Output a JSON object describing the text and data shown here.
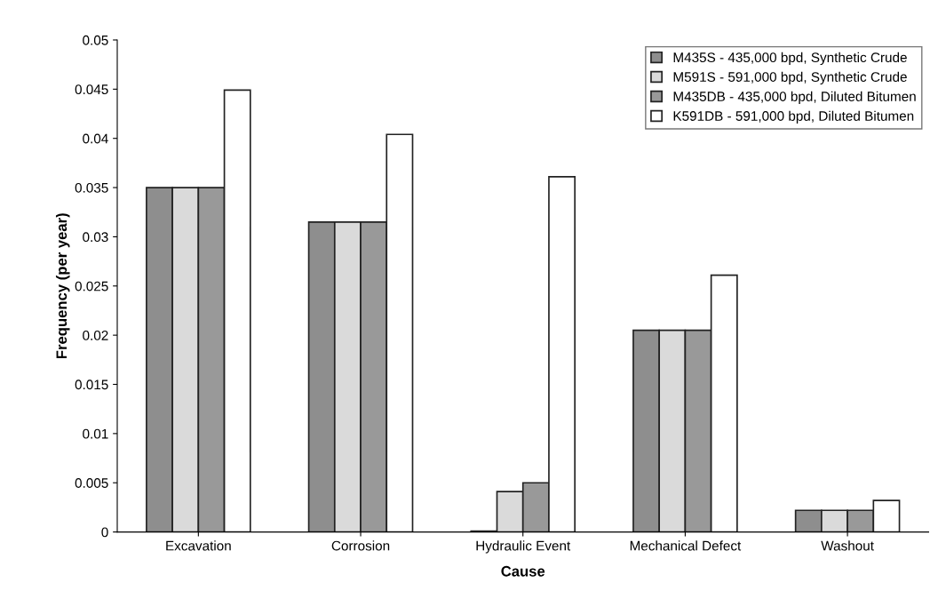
{
  "chart_data": {
    "type": "bar",
    "xlabel": "Cause",
    "ylabel": "Frequency (per year)",
    "categories": [
      "Excavation",
      "Corrosion",
      "Hydraulic Event",
      "Mechanical Defect",
      "Washout"
    ],
    "series": [
      {
        "name": "M435S - 435,000 bpd, Synthetic Crude",
        "color": "#8e8e8e",
        "values": [
          0.035,
          0.0315,
          0.0001,
          0.0205,
          0.0022
        ]
      },
      {
        "name": "M591S - 591,000 bpd, Synthetic Crude",
        "color": "#dadada",
        "values": [
          0.035,
          0.0315,
          0.0041,
          0.0205,
          0.0022
        ]
      },
      {
        "name": "M435DB - 435,000 bpd, Diluted Bitumen",
        "color": "#999999",
        "values": [
          0.035,
          0.0315,
          0.005,
          0.0205,
          0.0022
        ]
      },
      {
        "name": "K591DB - 591,000 bpd, Diluted Bitumen",
        "color": "#ffffff",
        "values": [
          0.0449,
          0.0404,
          0.0361,
          0.0261,
          0.0032
        ]
      }
    ],
    "ylim": [
      0,
      0.05
    ],
    "yticks": [
      0,
      0.005,
      0.01,
      0.015,
      0.02,
      0.025,
      0.03,
      0.035,
      0.04,
      0.045,
      0.05
    ],
    "grid": false,
    "legend": "top right"
  }
}
